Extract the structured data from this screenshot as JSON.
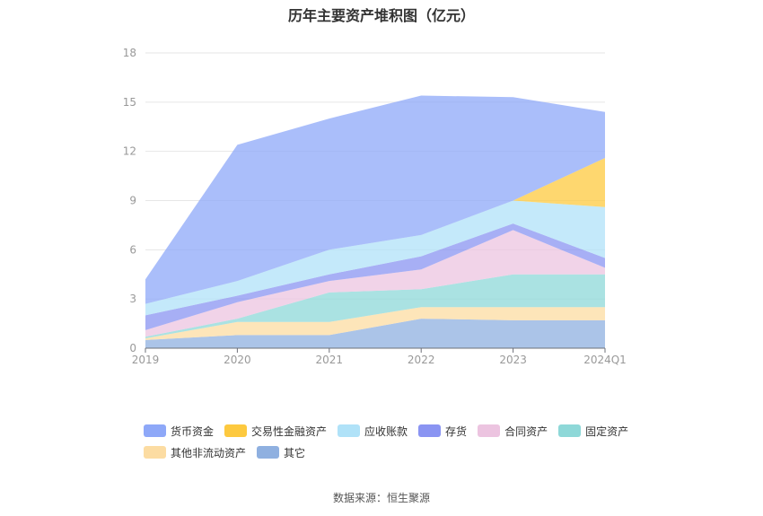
{
  "title": "历年主要资产堆积图（亿元）",
  "source": "数据来源：恒生聚源",
  "chart_data": {
    "type": "area",
    "stacked": true,
    "title": "历年主要资产堆积图（亿元）",
    "xlabel": "",
    "ylabel": "",
    "categories": [
      "2019",
      "2020",
      "2021",
      "2022",
      "2023",
      "2024Q1"
    ],
    "ylim": [
      0,
      18
    ],
    "yticks": [
      0,
      3,
      6,
      9,
      12,
      15,
      18
    ],
    "grid": true,
    "legend_position": "bottom",
    "series": [
      {
        "name": "其它",
        "color": "#8fb0e0",
        "values": [
          0.5,
          0.8,
          0.8,
          1.8,
          1.7,
          1.7
        ]
      },
      {
        "name": "其他非流动资产",
        "color": "#fcdca2",
        "values": [
          0.1,
          0.8,
          0.8,
          0.7,
          0.8,
          0.8
        ]
      },
      {
        "name": "固定资产",
        "color": "#8ed8d8",
        "values": [
          0.1,
          0.2,
          1.8,
          1.1,
          2.0,
          2.0
        ]
      },
      {
        "name": "合同资产",
        "color": "#ecc4e0",
        "values": [
          0.4,
          1.0,
          0.7,
          1.2,
          2.7,
          0.4
        ]
      },
      {
        "name": "存货",
        "color": "#8a94f2",
        "values": [
          0.9,
          0.4,
          0.4,
          0.8,
          0.4,
          0.6
        ]
      },
      {
        "name": "应收账款",
        "color": "#b0e2f8",
        "values": [
          0.7,
          0.9,
          1.5,
          1.3,
          1.4,
          3.1
        ]
      },
      {
        "name": "交易性金融资产",
        "color": "#fdc93f",
        "values": [
          0,
          0,
          0,
          0,
          0,
          3.0
        ]
      },
      {
        "name": "货币资金",
        "color": "#8ea8f8",
        "values": [
          1.5,
          8.3,
          8.0,
          8.5,
          6.3,
          2.8
        ]
      }
    ],
    "legend_order": [
      "货币资金",
      "交易性金融资产",
      "应收账款",
      "存货",
      "合同资产",
      "固定资产",
      "其他非流动资产",
      "其它"
    ]
  }
}
